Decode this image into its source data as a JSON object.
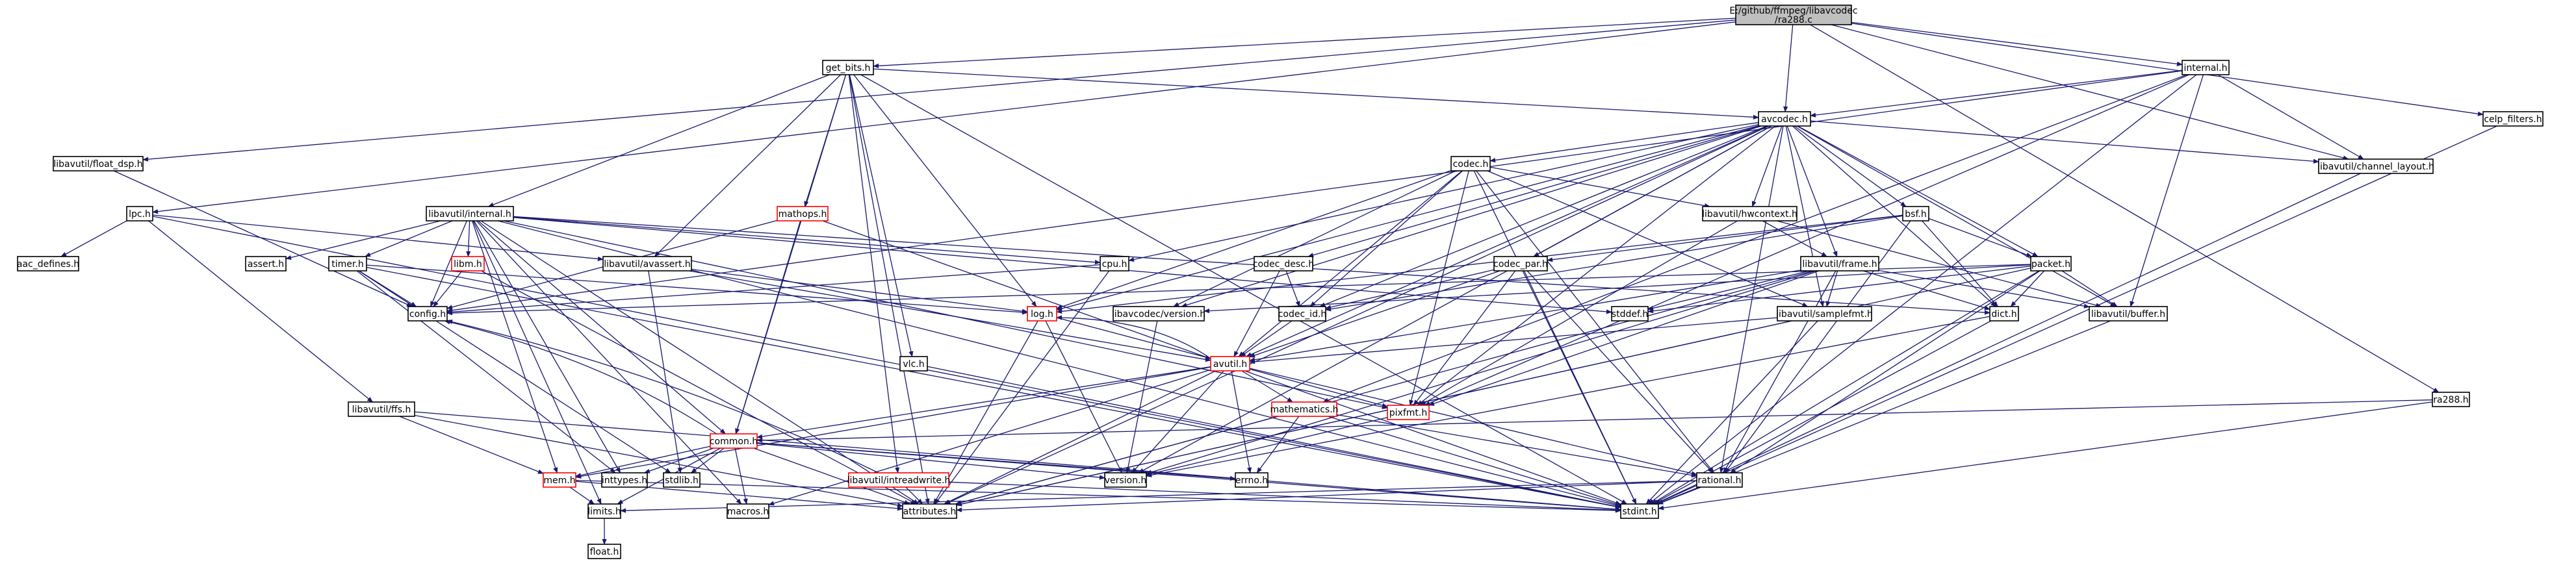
{
  "root": [
    "E:/github/ffmpeg/libavcodec",
    "/ra288.c"
  ],
  "nodes": [
    {
      "id": "ra288_c",
      "label": "E:/github/ffmpeg/libavcodec/ra288.c",
      "root": true
    },
    {
      "id": "libavutil_float_dsp_h",
      "label": "libavutil/float_dsp.h"
    },
    {
      "id": "lpc_h",
      "label": "lpc.h"
    },
    {
      "id": "get_bits_h",
      "label": "get_bits.h"
    },
    {
      "id": "avcodec_h",
      "label": "avcodec.h"
    },
    {
      "id": "internal_h",
      "label": "internal.h"
    },
    {
      "id": "celp_filters_h",
      "label": "celp_filters.h"
    },
    {
      "id": "ra288_h",
      "label": "ra288.h"
    },
    {
      "id": "aac_defines_h",
      "label": "aac_defines.h"
    },
    {
      "id": "libavutil_internal_h",
      "label": "libavutil/internal.h"
    },
    {
      "id": "libavutil_avassert_h",
      "label": "libavutil/avassert.h"
    },
    {
      "id": "mathops_h",
      "label": "mathops.h",
      "red": true
    },
    {
      "id": "codec_h",
      "label": "codec.h"
    },
    {
      "id": "libavutil_hwcontext_h",
      "label": "libavutil/hwcontext.h"
    },
    {
      "id": "bsf_h",
      "label": "bsf.h"
    },
    {
      "id": "libavutil_channel_layout_h",
      "label": "libavutil/channel_layout.h"
    },
    {
      "id": "assert_h",
      "label": "assert.h"
    },
    {
      "id": "timer_h",
      "label": "timer.h"
    },
    {
      "id": "libm_h",
      "label": "libm.h",
      "red": true
    },
    {
      "id": "config_h",
      "label": "config.h"
    },
    {
      "id": "cpu_h",
      "label": "cpu.h"
    },
    {
      "id": "codec_desc_h",
      "label": "codec_desc.h"
    },
    {
      "id": "codec_par_h",
      "label": "codec_par.h"
    },
    {
      "id": "libavutil_frame_h",
      "label": "libavutil/frame.h"
    },
    {
      "id": "packet_h",
      "label": "packet.h"
    },
    {
      "id": "log_h",
      "label": "log.h",
      "red": true
    },
    {
      "id": "libavcodec_version_h",
      "label": "libavcodec/version.h"
    },
    {
      "id": "codec_id_h",
      "label": "codec_id.h"
    },
    {
      "id": "stddef_h",
      "label": "stddef.h"
    },
    {
      "id": "libavutil_samplefmt_h",
      "label": "libavutil/samplefmt.h"
    },
    {
      "id": "dict_h",
      "label": "dict.h"
    },
    {
      "id": "libavutil_buffer_h",
      "label": "libavutil/buffer.h"
    },
    {
      "id": "vlc_h",
      "label": "vlc.h"
    },
    {
      "id": "avutil_h",
      "label": "avutil.h",
      "red": true
    },
    {
      "id": "libavutil_ffs_h",
      "label": "libavutil/ffs.h"
    },
    {
      "id": "mathematics_h",
      "label": "mathematics.h",
      "red": true
    },
    {
      "id": "pixfmt_h",
      "label": "pixfmt.h",
      "red": true
    },
    {
      "id": "common_h",
      "label": "common.h",
      "red": true
    },
    {
      "id": "libavutil_intreadwrite_h",
      "label": "libavutil/intreadwrite.h",
      "red": true
    },
    {
      "id": "mem_h",
      "label": "mem.h",
      "red": true
    },
    {
      "id": "inttypes_h",
      "label": "inttypes.h"
    },
    {
      "id": "stdlib_h",
      "label": "stdlib.h"
    },
    {
      "id": "version_h",
      "label": "version.h"
    },
    {
      "id": "errno_h",
      "label": "errno.h"
    },
    {
      "id": "rational_h",
      "label": "rational.h"
    },
    {
      "id": "limits_h",
      "label": "limits.h"
    },
    {
      "id": "macros_h",
      "label": "macros.h"
    },
    {
      "id": "attributes_h",
      "label": "attributes.h"
    },
    {
      "id": "stdint_h",
      "label": "stdint.h"
    },
    {
      "id": "float_h",
      "label": "float.h"
    }
  ],
  "edges": [
    [
      "ra288_c",
      "libavutil_float_dsp_h"
    ],
    [
      "ra288_c",
      "lpc_h"
    ],
    [
      "ra288_c",
      "get_bits_h"
    ],
    [
      "ra288_c",
      "avcodec_h"
    ],
    [
      "ra288_c",
      "internal_h"
    ],
    [
      "ra288_c",
      "celp_filters_h"
    ],
    [
      "ra288_c",
      "ra288_h"
    ],
    [
      "ra288_c",
      "libavutil_channel_layout_h"
    ],
    [
      "libavutil_float_dsp_h",
      "config_h"
    ],
    [
      "lpc_h",
      "aac_defines_h"
    ],
    [
      "lpc_h",
      "libavutil_avassert_h"
    ],
    [
      "lpc_h",
      "libavutil_ffs_h"
    ],
    [
      "lpc_h",
      "stdint_h"
    ],
    [
      "get_bits_h",
      "libavutil_internal_h"
    ],
    [
      "get_bits_h",
      "libavutil_avassert_h"
    ],
    [
      "get_bits_h",
      "mathops_h"
    ],
    [
      "get_bits_h",
      "avcodec_h"
    ],
    [
      "get_bits_h",
      "vlc_h"
    ],
    [
      "get_bits_h",
      "common_h"
    ],
    [
      "get_bits_h",
      "libavutil_intreadwrite_h"
    ],
    [
      "get_bits_h",
      "log_h"
    ],
    [
      "get_bits_h",
      "stdint_h"
    ],
    [
      "get_bits_h",
      "attributes_h"
    ],
    [
      "avcodec_h",
      "codec_h"
    ],
    [
      "avcodec_h",
      "libavutil_hwcontext_h"
    ],
    [
      "avcodec_h",
      "bsf_h"
    ],
    [
      "avcodec_h",
      "libavutil_channel_layout_h"
    ],
    [
      "avcodec_h",
      "cpu_h"
    ],
    [
      "avcodec_h",
      "codec_desc_h"
    ],
    [
      "avcodec_h",
      "codec_par_h"
    ],
    [
      "avcodec_h",
      "libavutil_frame_h"
    ],
    [
      "avcodec_h",
      "packet_h"
    ],
    [
      "avcodec_h",
      "log_h"
    ],
    [
      "avcodec_h",
      "libavcodec_version_h"
    ],
    [
      "avcodec_h",
      "codec_id_h"
    ],
    [
      "avcodec_h",
      "libavutil_samplefmt_h"
    ],
    [
      "avcodec_h",
      "dict_h"
    ],
    [
      "avcodec_h",
      "libavutil_buffer_h"
    ],
    [
      "avcodec_h",
      "avutil_h"
    ],
    [
      "avcodec_h",
      "pixfmt_h"
    ],
    [
      "avcodec_h",
      "rational_h"
    ],
    [
      "avcodec_h",
      "attributes_h"
    ],
    [
      "avcodec_h",
      "version_h"
    ],
    [
      "internal_h",
      "avcodec_h"
    ],
    [
      "internal_h",
      "libavutil_channel_layout_h"
    ],
    [
      "internal_h",
      "libavutil_buffer_h"
    ],
    [
      "internal_h",
      "stdint_h"
    ],
    [
      "internal_h",
      "pixfmt_h"
    ],
    [
      "internal_h",
      "mathematics_h"
    ],
    [
      "internal_h",
      "config_h"
    ],
    [
      "celp_filters_h",
      "stdint_h"
    ],
    [
      "ra288_h",
      "common_h"
    ],
    [
      "ra288_h",
      "stdint_h"
    ],
    [
      "libavutil_internal_h",
      "assert_h"
    ],
    [
      "libavutil_internal_h",
      "timer_h"
    ],
    [
      "libavutil_internal_h",
      "libm_h"
    ],
    [
      "libavutil_internal_h",
      "config_h"
    ],
    [
      "libavutil_internal_h",
      "cpu_h"
    ],
    [
      "libavutil_internal_h",
      "stddef_h"
    ],
    [
      "libavutil_internal_h",
      "dict_h"
    ],
    [
      "libavutil_internal_h",
      "mem_h"
    ],
    [
      "libavutil_internal_h",
      "common_h"
    ],
    [
      "libavutil_internal_h",
      "pixfmt_h"
    ],
    [
      "libavutil_internal_h",
      "limits_h"
    ],
    [
      "libavutil_internal_h",
      "inttypes_h"
    ],
    [
      "libavutil_internal_h",
      "stdint_h"
    ],
    [
      "libavutil_internal_h",
      "attributes_h"
    ],
    [
      "libavutil_internal_h",
      "macros_h"
    ],
    [
      "libavutil_avassert_h",
      "stdlib_h"
    ],
    [
      "libavutil_avassert_h",
      "log_h"
    ],
    [
      "libavutil_avassert_h",
      "avutil_h"
    ],
    [
      "mathops_h",
      "config_h"
    ],
    [
      "mathops_h",
      "common_h"
    ],
    [
      "mathops_h",
      "stdint_h"
    ],
    [
      "codec_h",
      "libavutil_hwcontext_h"
    ],
    [
      "codec_h",
      "log_h"
    ],
    [
      "codec_h",
      "codec_id_h"
    ],
    [
      "codec_h",
      "libavcodec_version_h"
    ],
    [
      "codec_h",
      "avutil_h"
    ],
    [
      "codec_h",
      "pixfmt_h"
    ],
    [
      "codec_h",
      "rational_h"
    ],
    [
      "codec_h",
      "libavutil_samplefmt_h"
    ],
    [
      "codec_h",
      "stdint_h"
    ],
    [
      "libavutil_hwcontext_h",
      "libavutil_frame_h"
    ],
    [
      "libavutil_hwcontext_h",
      "libavutil_buffer_h"
    ],
    [
      "libavutil_hwcontext_h",
      "pixfmt_h"
    ],
    [
      "bsf_h",
      "codec_id_h"
    ],
    [
      "bsf_h",
      "codec_par_h"
    ],
    [
      "bsf_h",
      "packet_h"
    ],
    [
      "bsf_h",
      "log_h"
    ],
    [
      "bsf_h",
      "dict_h"
    ],
    [
      "bsf_h",
      "rational_h"
    ],
    [
      "libavutil_channel_layout_h",
      "stdint_h"
    ],
    [
      "timer_h",
      "config_h"
    ],
    [
      "timer_h",
      "log_h"
    ],
    [
      "timer_h",
      "inttypes_h"
    ],
    [
      "timer_h",
      "stdlib_h"
    ],
    [
      "timer_h",
      "stdint_h"
    ],
    [
      "libm_h",
      "config_h"
    ],
    [
      "libm_h",
      "attributes_h"
    ],
    [
      "cpu_h",
      "config_h"
    ],
    [
      "cpu_h",
      "attributes_h"
    ],
    [
      "codec_desc_h",
      "codec_id_h"
    ],
    [
      "codec_desc_h",
      "avutil_h"
    ],
    [
      "codec_par_h",
      "codec_id_h"
    ],
    [
      "codec_par_h",
      "avutil_h"
    ],
    [
      "codec_par_h",
      "pixfmt_h"
    ],
    [
      "codec_par_h",
      "rational_h"
    ],
    [
      "codec_par_h",
      "stdint_h"
    ],
    [
      "libavutil_frame_h",
      "stddef_h"
    ],
    [
      "libavutil_frame_h",
      "avutil_h"
    ],
    [
      "libavutil_frame_h",
      "libavutil_buffer_h"
    ],
    [
      "libavutil_frame_h",
      "dict_h"
    ],
    [
      "libavutil_frame_h",
      "libavutil_samplefmt_h"
    ],
    [
      "libavutil_frame_h",
      "pixfmt_h"
    ],
    [
      "libavutil_frame_h",
      "rational_h"
    ],
    [
      "libavutil_frame_h",
      "attributes_h"
    ],
    [
      "libavutil_frame_h",
      "version_h"
    ],
    [
      "packet_h",
      "stddef_h"
    ],
    [
      "packet_h",
      "stdint_h"
    ],
    [
      "packet_h",
      "attributes_h"
    ],
    [
      "packet_h",
      "libavutil_buffer_h"
    ],
    [
      "packet_h",
      "dict_h"
    ],
    [
      "packet_h",
      "rational_h"
    ],
    [
      "packet_h",
      "libavcodec_version_h"
    ],
    [
      "packet_h",
      "config_h"
    ],
    [
      "log_h",
      "avutil_h"
    ],
    [
      "log_h",
      "attributes_h"
    ],
    [
      "log_h",
      "version_h"
    ],
    [
      "libavcodec_version_h",
      "version_h"
    ],
    [
      "codec_id_h",
      "avutil_h"
    ],
    [
      "libavutil_samplefmt_h",
      "avutil_h"
    ],
    [
      "libavutil_samplefmt_h",
      "attributes_h"
    ],
    [
      "libavutil_samplefmt_h",
      "stdint_h"
    ],
    [
      "dict_h",
      "stdint_h"
    ],
    [
      "dict_h",
      "version_h"
    ],
    [
      "libavutil_buffer_h",
      "stdint_h"
    ],
    [
      "vlc_h",
      "stdint_h"
    ],
    [
      "avutil_h",
      "common_h"
    ],
    [
      "avutil_h",
      "errno_h"
    ],
    [
      "avutil_h",
      "mathematics_h"
    ],
    [
      "avutil_h",
      "rational_h"
    ],
    [
      "avutil_h",
      "version_h"
    ],
    [
      "avutil_h",
      "macros_h"
    ],
    [
      "avutil_h",
      "pixfmt_h"
    ],
    [
      "avutil_h",
      "log_h"
    ],
    [
      "avutil_h",
      "mem_h"
    ],
    [
      "avutil_h",
      "attributes_h"
    ],
    [
      "libavutil_ffs_h",
      "mem_h"
    ],
    [
      "libavutil_ffs_h",
      "stdint_h"
    ],
    [
      "libavutil_ffs_h",
      "attributes_h"
    ],
    [
      "mathematics_h",
      "rational_h"
    ],
    [
      "mathematics_h",
      "attributes_h"
    ],
    [
      "mathematics_h",
      "stdint_h"
    ],
    [
      "mathematics_h",
      "errno_h"
    ],
    [
      "pixfmt_h",
      "version_h"
    ],
    [
      "common_h",
      "attributes_h"
    ],
    [
      "common_h",
      "inttypes_h"
    ],
    [
      "common_h",
      "stdlib_h"
    ],
    [
      "common_h",
      "limits_h"
    ],
    [
      "common_h",
      "stdint_h"
    ],
    [
      "common_h",
      "macros_h"
    ],
    [
      "common_h",
      "mem_h"
    ],
    [
      "common_h",
      "version_h"
    ],
    [
      "common_h",
      "errno_h"
    ],
    [
      "common_h",
      "config_h"
    ],
    [
      "libavutil_intreadwrite_h",
      "attributes_h"
    ],
    [
      "libavutil_intreadwrite_h",
      "stdint_h"
    ],
    [
      "libavutil_intreadwrite_h",
      "config_h"
    ],
    [
      "mem_h",
      "limits_h"
    ],
    [
      "mem_h",
      "attributes_h"
    ],
    [
      "mem_h",
      "stdint_h"
    ],
    [
      "rational_h",
      "limits_h"
    ],
    [
      "rational_h",
      "attributes_h"
    ],
    [
      "rational_h",
      "stdint_h"
    ],
    [
      "limits_h",
      "float_h"
    ]
  ]
}
